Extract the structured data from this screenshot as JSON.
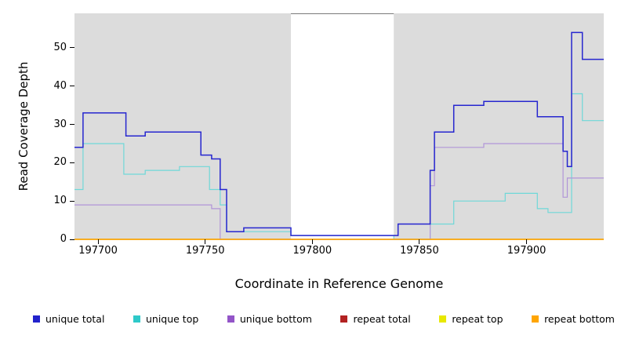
{
  "chart_data": {
    "type": "line",
    "title": "",
    "xlabel": "Coordinate in Reference Genome",
    "ylabel": "Read Coverage Depth",
    "xlim": [
      197689,
      197936
    ],
    "ylim": [
      0,
      59
    ],
    "xticks": [
      197700,
      197750,
      197800,
      197850,
      197900
    ],
    "yticks": [
      0,
      10,
      20,
      30,
      40,
      50
    ],
    "plot_background": "#dcdcdc",
    "figure_background": "#ffffff",
    "grid": false,
    "masked_region": {
      "x_start": 197790,
      "x_end": 197838
    },
    "series": [
      {
        "name": "repeat total",
        "color": "#b22222",
        "width": 1.2,
        "points": [
          [
            197689,
            0
          ],
          [
            197936,
            0
          ]
        ]
      },
      {
        "name": "repeat top",
        "color": "#e8e800",
        "width": 1.2,
        "points": [
          [
            197689,
            0
          ],
          [
            197936,
            0
          ]
        ]
      },
      {
        "name": "unique top",
        "color": "#6fd8d8",
        "width": 1.2,
        "points": [
          [
            197689,
            13
          ],
          [
            197693,
            25
          ],
          [
            197712,
            17
          ],
          [
            197722,
            18
          ],
          [
            197738,
            19
          ],
          [
            197752,
            13
          ],
          [
            197757,
            9
          ],
          [
            197760,
            2
          ],
          [
            197790,
            1
          ],
          [
            197838,
            0
          ],
          [
            197855,
            4
          ],
          [
            197866,
            10
          ],
          [
            197890,
            12
          ],
          [
            197905,
            8
          ],
          [
            197910,
            7
          ],
          [
            197921,
            38
          ],
          [
            197926,
            31
          ],
          [
            197936,
            31
          ]
        ]
      },
      {
        "name": "unique bottom",
        "color": "#b195d8",
        "width": 1.2,
        "points": [
          [
            197689,
            9
          ],
          [
            197753,
            8
          ],
          [
            197757,
            0
          ],
          [
            197855,
            14
          ],
          [
            197857,
            24
          ],
          [
            197880,
            25
          ],
          [
            197917,
            11
          ],
          [
            197919,
            16
          ],
          [
            197936,
            16
          ]
        ]
      },
      {
        "name": "unique total",
        "color": "#2626cf",
        "width": 1.5,
        "points": [
          [
            197689,
            24
          ],
          [
            197693,
            33
          ],
          [
            197713,
            27
          ],
          [
            197722,
            28
          ],
          [
            197748,
            22
          ],
          [
            197753,
            21
          ],
          [
            197757,
            13
          ],
          [
            197760,
            2
          ],
          [
            197768,
            3
          ],
          [
            197790,
            1
          ],
          [
            197840,
            4
          ],
          [
            197855,
            18
          ],
          [
            197857,
            28
          ],
          [
            197866,
            35
          ],
          [
            197880,
            36
          ],
          [
            197905,
            32
          ],
          [
            197917,
            23
          ],
          [
            197919,
            19
          ],
          [
            197921,
            54
          ],
          [
            197926,
            47
          ],
          [
            197936,
            47
          ]
        ]
      },
      {
        "name": "repeat bottom",
        "color": "#ffa500",
        "width": 1.4,
        "points": [
          [
            197689,
            0
          ],
          [
            197936,
            0
          ]
        ]
      }
    ],
    "legend": [
      {
        "label": "unique total",
        "color": "#2222cc"
      },
      {
        "label": "unique top",
        "color": "#2ec9c9"
      },
      {
        "label": "unique bottom",
        "color": "#9355c8"
      },
      {
        "label": "repeat total",
        "color": "#b22222"
      },
      {
        "label": "repeat top",
        "color": "#e8e800"
      },
      {
        "label": "repeat bottom",
        "color": "#ffa500"
      }
    ]
  }
}
